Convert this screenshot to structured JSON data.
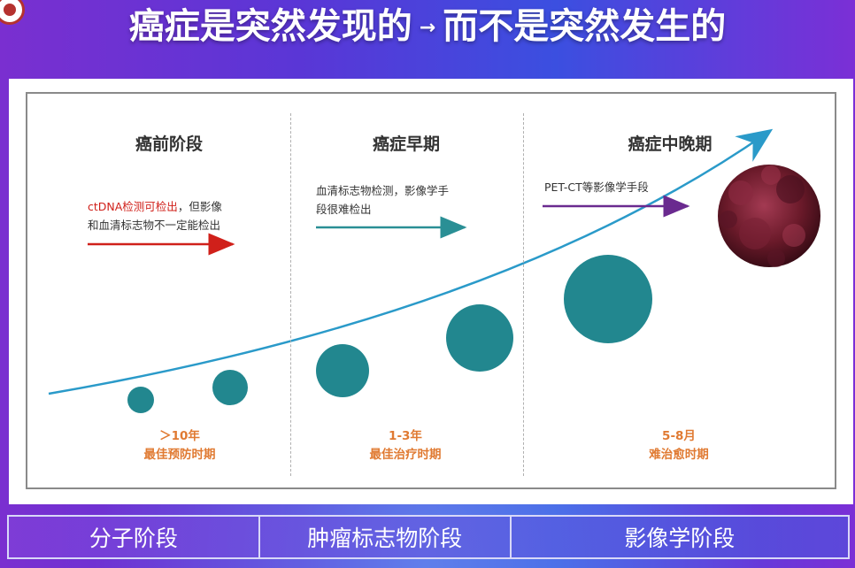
{
  "title": {
    "part1": "癌症是突然发现的",
    "arrow": "→",
    "part2": "而不是突然发生的"
  },
  "stages": [
    {
      "name": "癌前阶段",
      "note_highlight": "ctDNA检测可检出",
      "note_rest_line1": "，但影像",
      "note_line2": "和血清标志物不一定能检出",
      "arrow_color": "#d0201a",
      "time_span": "＞10年",
      "time_label": "最佳预防时期"
    },
    {
      "name": "癌症早期",
      "note_line1": "血清标志物检测，影像学手",
      "note_line2": "段很难检出",
      "arrow_color": "#2a8f95",
      "time_span": "1-3年",
      "time_label": "最佳治疗时期"
    },
    {
      "name": "癌症中晚期",
      "note_line1": "PET-CT等影像学手段",
      "arrow_color": "#6a2a8f",
      "time_span": "5-8月",
      "time_label": "难治愈时期"
    }
  ],
  "bottom_bar": [
    "分子阶段",
    "肿瘤标志物阶段",
    "影像学阶段"
  ],
  "colors": {
    "curve": "#2a9ac9",
    "bubble": "#22878f",
    "tumor": "#6b1a2a",
    "time_text": "#e07a32"
  },
  "icons": {
    "logo": "university-seal-icon",
    "tumor": "tumor-cell-icon"
  }
}
